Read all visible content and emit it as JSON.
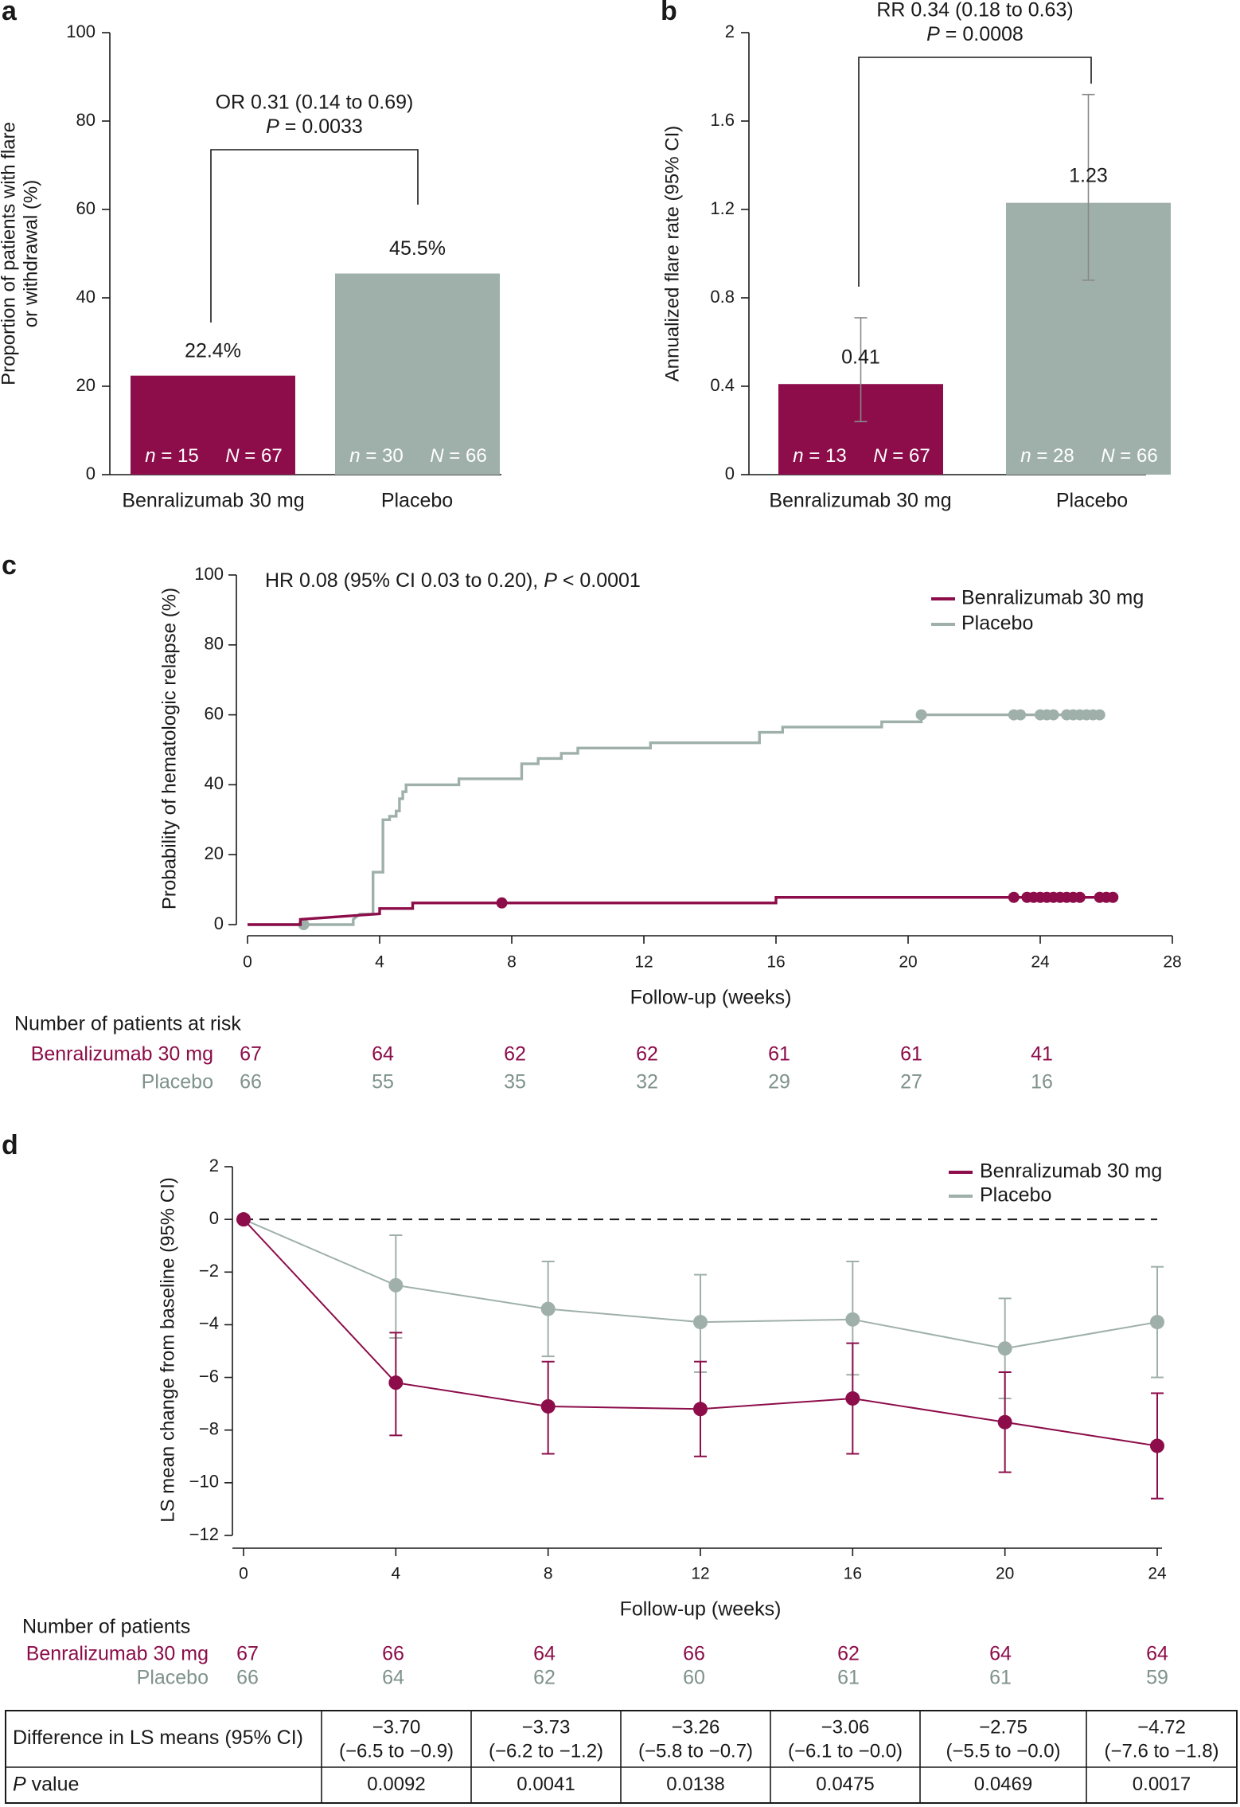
{
  "colors": {
    "benra": "#8c0d4a",
    "placebo": "#9fb0aa",
    "axis": "#1a1a1a"
  },
  "chart_data": [
    {
      "panel": "a",
      "type": "bar",
      "categories": [
        "Benralizumab 30 mg",
        "Placebo"
      ],
      "values": [
        22.4,
        45.5
      ],
      "value_labels": [
        "22.4%",
        "45.5%"
      ],
      "n_labels": [
        [
          "n = 15",
          "N = 67"
        ],
        [
          "n = 30",
          "N = 66"
        ]
      ],
      "ylabel": [
        "Proportion of patients with flare",
        "or withdrawal (%)"
      ],
      "ylim": [
        0,
        100
      ],
      "yticks": [
        0,
        20,
        40,
        60,
        80,
        100
      ],
      "annotation": [
        "OR 0.31 (0.14 to 0.69)",
        "P = 0.0033"
      ]
    },
    {
      "panel": "b",
      "type": "bar",
      "categories": [
        "Benralizumab 30 mg",
        "Placebo"
      ],
      "values": [
        0.41,
        1.23
      ],
      "ci": [
        [
          0.24,
          0.71
        ],
        [
          0.88,
          1.72
        ]
      ],
      "value_labels": [
        "0.41",
        "1.23"
      ],
      "n_labels": [
        [
          "n = 13",
          "N = 67"
        ],
        [
          "n = 28",
          "N = 66"
        ]
      ],
      "ylabel": [
        "Annualized flare rate (95% CI)"
      ],
      "ylim": [
        0,
        2
      ],
      "yticks": [
        0,
        0.4,
        0.8,
        1.2,
        1.6,
        2
      ],
      "ytick_labels": [
        "0",
        "0.4",
        "0.8",
        "1.2",
        "1.6",
        "2"
      ],
      "annotation": [
        "RR 0.34 (0.18 to 0.63)",
        "P = 0.0008"
      ]
    },
    {
      "panel": "c",
      "type": "line",
      "title": "HR 0.08 (95% CI 0.03 to 0.20), P < 0.0001",
      "xlabel": "Follow-up (weeks)",
      "ylabel": "Probability of hematologic relapse (%)",
      "xlim": [
        0,
        28
      ],
      "ylim": [
        0,
        100
      ],
      "xticks": [
        0,
        4,
        8,
        12,
        16,
        20,
        24,
        28
      ],
      "yticks": [
        0,
        20,
        40,
        60,
        80,
        100
      ],
      "legend": [
        "Benralizumab 30 mg",
        "Placebo"
      ],
      "series": [
        {
          "name": "Benralizumab 30 mg",
          "steps": [
            [
              0,
              0
            ],
            [
              1.6,
              0
            ],
            [
              1.6,
              1.5
            ],
            [
              4,
              3.1
            ],
            [
              4,
              4.6
            ],
            [
              5,
              4.6
            ],
            [
              5,
              6.2
            ],
            [
              16,
              6.2
            ],
            [
              16,
              7.8
            ],
            [
              26.2,
              7.8
            ]
          ],
          "censored": [
            [
              7.7,
              6.2
            ],
            [
              23.2,
              7.8
            ],
            [
              23.6,
              7.8
            ],
            [
              23.8,
              7.8
            ],
            [
              24.0,
              7.8
            ],
            [
              24.2,
              7.8
            ],
            [
              24.4,
              7.8
            ],
            [
              24.6,
              7.8
            ],
            [
              24.8,
              7.8
            ],
            [
              25.0,
              7.8
            ],
            [
              25.2,
              7.8
            ],
            [
              25.8,
              7.8
            ],
            [
              26.0,
              7.8
            ],
            [
              26.2,
              7.8
            ]
          ]
        },
        {
          "name": "Placebo",
          "steps": [
            [
              0,
              0
            ],
            [
              3.2,
              0
            ],
            [
              3.2,
              1.5
            ],
            [
              3.4,
              3
            ],
            [
              3.8,
              3
            ],
            [
              3.8,
              15
            ],
            [
              4.1,
              15
            ],
            [
              4.1,
              30
            ],
            [
              4.3,
              30
            ],
            [
              4.3,
              31
            ],
            [
              4.5,
              31
            ],
            [
              4.5,
              32.5
            ],
            [
              4.6,
              32.5
            ],
            [
              4.6,
              36
            ],
            [
              4.7,
              36
            ],
            [
              4.7,
              38
            ],
            [
              4.8,
              38
            ],
            [
              4.8,
              40
            ],
            [
              6.4,
              40
            ],
            [
              6.4,
              41.7
            ],
            [
              8.3,
              41.7
            ],
            [
              8.3,
              46
            ],
            [
              8.8,
              46
            ],
            [
              8.8,
              47.5
            ],
            [
              9.5,
              47.5
            ],
            [
              9.5,
              49
            ],
            [
              10,
              49
            ],
            [
              10,
              50.5
            ],
            [
              12.2,
              50.5
            ],
            [
              12.2,
              52
            ],
            [
              15.5,
              52
            ],
            [
              15.5,
              55
            ],
            [
              16.2,
              55
            ],
            [
              16.2,
              56.5
            ],
            [
              19.2,
              56.5
            ],
            [
              19.2,
              58
            ],
            [
              20.4,
              58
            ],
            [
              20.4,
              60
            ],
            [
              25.8,
              60
            ]
          ],
          "censored": [
            [
              1.7,
              0
            ],
            [
              20.4,
              60
            ],
            [
              23.2,
              60
            ],
            [
              23.4,
              60
            ],
            [
              24.0,
              60
            ],
            [
              24.2,
              60
            ],
            [
              24.4,
              60
            ],
            [
              24.8,
              60
            ],
            [
              25.0,
              60
            ],
            [
              25.2,
              60
            ],
            [
              25.4,
              60
            ],
            [
              25.6,
              60
            ],
            [
              25.8,
              60
            ]
          ]
        }
      ],
      "at_risk": {
        "header": "Number of patients at risk",
        "weeks": [
          0,
          4,
          8,
          12,
          16,
          20,
          24
        ],
        "rows": [
          {
            "label": "Benralizumab 30 mg",
            "values": [
              "67",
              "64",
              "62",
              "62",
              "61",
              "61",
              "41"
            ]
          },
          {
            "label": "Placebo",
            "values": [
              "66",
              "55",
              "35",
              "32",
              "29",
              "27",
              "16"
            ]
          }
        ]
      }
    },
    {
      "panel": "d",
      "type": "line",
      "xlabel": "Follow-up (weeks)",
      "ylabel": "LS mean change from baseline (95% CI)",
      "xlim": [
        0,
        24
      ],
      "ylim": [
        -12,
        2
      ],
      "xticks": [
        0,
        4,
        8,
        12,
        16,
        20,
        24
      ],
      "yticks": [
        2,
        0,
        -2,
        -4,
        -6,
        -8,
        -10,
        -12
      ],
      "legend": [
        "Benralizumab 30 mg",
        "Placebo"
      ],
      "series": [
        {
          "name": "Benralizumab 30 mg",
          "x": [
            0,
            4,
            8,
            12,
            16,
            20,
            24
          ],
          "y": [
            0,
            -6.2,
            -7.1,
            -7.2,
            -6.8,
            -7.7,
            -8.6
          ],
          "lo": [
            null,
            -8.2,
            -8.9,
            -9.0,
            -8.9,
            -9.6,
            -10.6
          ],
          "hi": [
            null,
            -4.3,
            -5.4,
            -5.4,
            -4.7,
            -5.8,
            -6.6
          ]
        },
        {
          "name": "Placebo",
          "x": [
            0,
            4,
            8,
            12,
            16,
            20,
            24
          ],
          "y": [
            0,
            -2.5,
            -3.4,
            -3.9,
            -3.8,
            -4.9,
            -3.9
          ],
          "lo": [
            null,
            -4.5,
            -5.2,
            -5.8,
            -5.9,
            -6.8,
            -6.0
          ],
          "hi": [
            null,
            -0.6,
            -1.6,
            -2.1,
            -1.6,
            -3.0,
            -1.8
          ]
        }
      ],
      "patients": {
        "header": "Number of patients",
        "weeks": [
          0,
          4,
          8,
          12,
          16,
          20,
          24
        ],
        "rows": [
          {
            "label": "Benralizumab 30 mg",
            "values": [
              "67",
              "66",
              "64",
              "66",
              "62",
              "64",
              "64"
            ]
          },
          {
            "label": "Placebo",
            "values": [
              "66",
              "64",
              "62",
              "60",
              "61",
              "61",
              "59"
            ]
          }
        ]
      },
      "table": {
        "row1_label": "Difference in LS means (95% CI)",
        "row2_label": "P value",
        "diffs": [
          [
            "−3.70",
            "(−6.5 to −0.9)"
          ],
          [
            "−3.73",
            "(−6.2 to −1.2)"
          ],
          [
            "−3.26",
            "(−5.8 to −0.7)"
          ],
          [
            "−3.06",
            "(−6.1 to −0.0)"
          ],
          [
            "−2.75",
            "(−5.5 to −0.0)"
          ],
          [
            "−4.72",
            "(−7.6 to −1.8)"
          ]
        ],
        "pvalues": [
          "0.0092",
          "0.0041",
          "0.0138",
          "0.0475",
          "0.0469",
          "0.0017"
        ]
      }
    }
  ]
}
